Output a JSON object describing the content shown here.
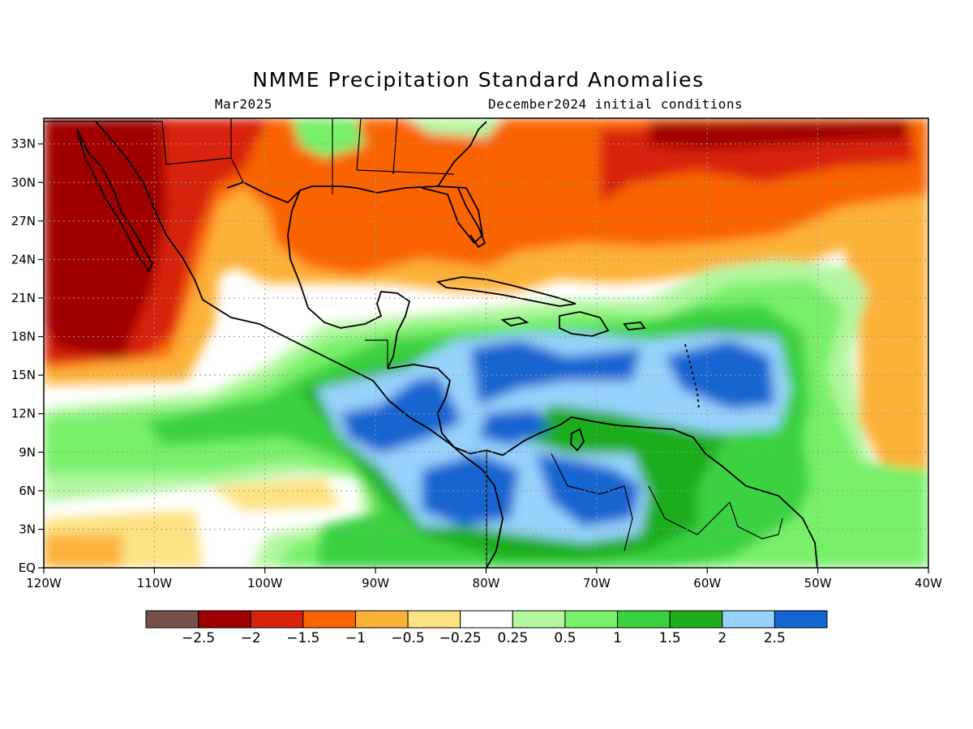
{
  "title": "NMME Precipitation Standard Anomalies",
  "subtitle_left": "Mar2025",
  "subtitle_right": "December2024 initial conditions",
  "map": {
    "region": "Central America / Caribbean / Gulf of Mexico",
    "lon_range": [
      -120,
      -40
    ],
    "lat_range": [
      0,
      35
    ],
    "grid_lines": "dotted",
    "coastlines": true,
    "country_borders": true
  },
  "x_ticks": [
    {
      "lon": -120,
      "label": "120W"
    },
    {
      "lon": -110,
      "label": "110W"
    },
    {
      "lon": -100,
      "label": "100W"
    },
    {
      "lon": -90,
      "label": "90W"
    },
    {
      "lon": -80,
      "label": "80W"
    },
    {
      "lon": -70,
      "label": "70W"
    },
    {
      "lon": -60,
      "label": "60W"
    },
    {
      "lon": -50,
      "label": "50W"
    },
    {
      "lon": -40,
      "label": "40W"
    }
  ],
  "y_ticks": [
    {
      "lat": 0,
      "label": "EQ"
    },
    {
      "lat": 3,
      "label": "3N"
    },
    {
      "lat": 6,
      "label": "6N"
    },
    {
      "lat": 9,
      "label": "9N"
    },
    {
      "lat": 12,
      "label": "12N"
    },
    {
      "lat": 15,
      "label": "15N"
    },
    {
      "lat": 18,
      "label": "18N"
    },
    {
      "lat": 21,
      "label": "21N"
    },
    {
      "lat": 24,
      "label": "24N"
    },
    {
      "lat": 27,
      "label": "27N"
    },
    {
      "lat": 30,
      "label": "30N"
    },
    {
      "lat": 33,
      "label": "33N"
    }
  ],
  "colorbar": {
    "colors": [
      "#76514a",
      "#a00000",
      "#d7220e",
      "#fa6405",
      "#fcb137",
      "#fde281",
      "#ffffff",
      "#b4f7a1",
      "#78f06a",
      "#3ad141",
      "#1ead1c",
      "#96d2fa",
      "#1565d1"
    ],
    "labels": [
      "-2.5",
      "-2",
      "-1.5",
      "-1",
      "-0.5",
      "-0.25",
      "0.25",
      "0.5",
      "1",
      "1.5",
      "2",
      "2.5"
    ]
  }
}
